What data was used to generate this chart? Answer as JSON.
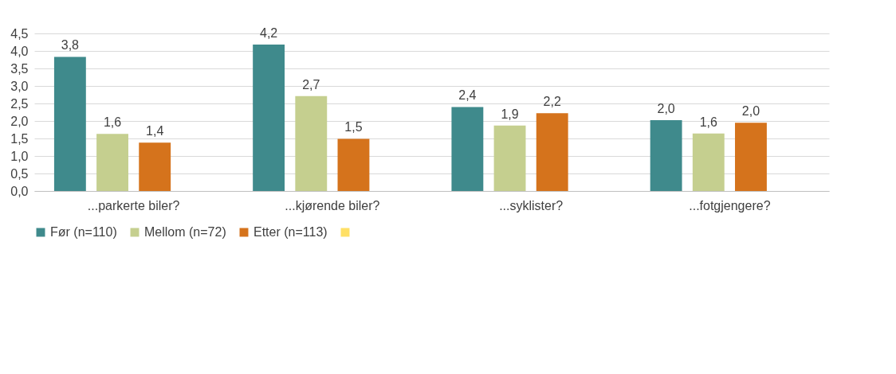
{
  "chart_data": {
    "type": "bar",
    "categories": [
      "...parkerte biler?",
      "...kjørende biler?",
      "...syklister?",
      "...fotgjengere?"
    ],
    "series": [
      {
        "name": "Før (n=110)",
        "color": "#3f8a8c",
        "values": [
          3.83,
          4.18,
          2.4,
          2.02
        ],
        "value_labels": [
          "3,8",
          "4,2",
          "2,4",
          "2,0"
        ]
      },
      {
        "name": "Mellom (n=72)",
        "color": "#c5cf8f",
        "values": [
          1.63,
          2.71,
          1.87,
          1.64
        ],
        "value_labels": [
          "1,6",
          "2,7",
          "1,9",
          "1,6"
        ]
      },
      {
        "name": "Etter (n=113)",
        "color": "#d5731c",
        "values": [
          1.38,
          1.49,
          2.22,
          1.95
        ],
        "value_labels": [
          "1,4",
          "1,5",
          "2,2",
          "2,0"
        ]
      },
      {
        "color": "#ffe066",
        "values": [
          null,
          null,
          null,
          null
        ]
      }
    ],
    "ylim": [
      0,
      4.5
    ],
    "yticks": [
      {
        "value": 0,
        "label": "0,0"
      },
      {
        "value": 0.5,
        "label": "0,5"
      },
      {
        "value": 1,
        "label": "1,0"
      },
      {
        "value": 1.5,
        "label": "1,5"
      },
      {
        "value": 2,
        "label": "2,0"
      },
      {
        "value": 2.5,
        "label": "2,5"
      },
      {
        "value": 3,
        "label": "3,0"
      },
      {
        "value": 3.5,
        "label": "3,5"
      },
      {
        "value": 4,
        "label": "4,0"
      },
      {
        "value": 4.5,
        "label": "4,5"
      }
    ],
    "grid": "y",
    "legend": "bottom"
  }
}
